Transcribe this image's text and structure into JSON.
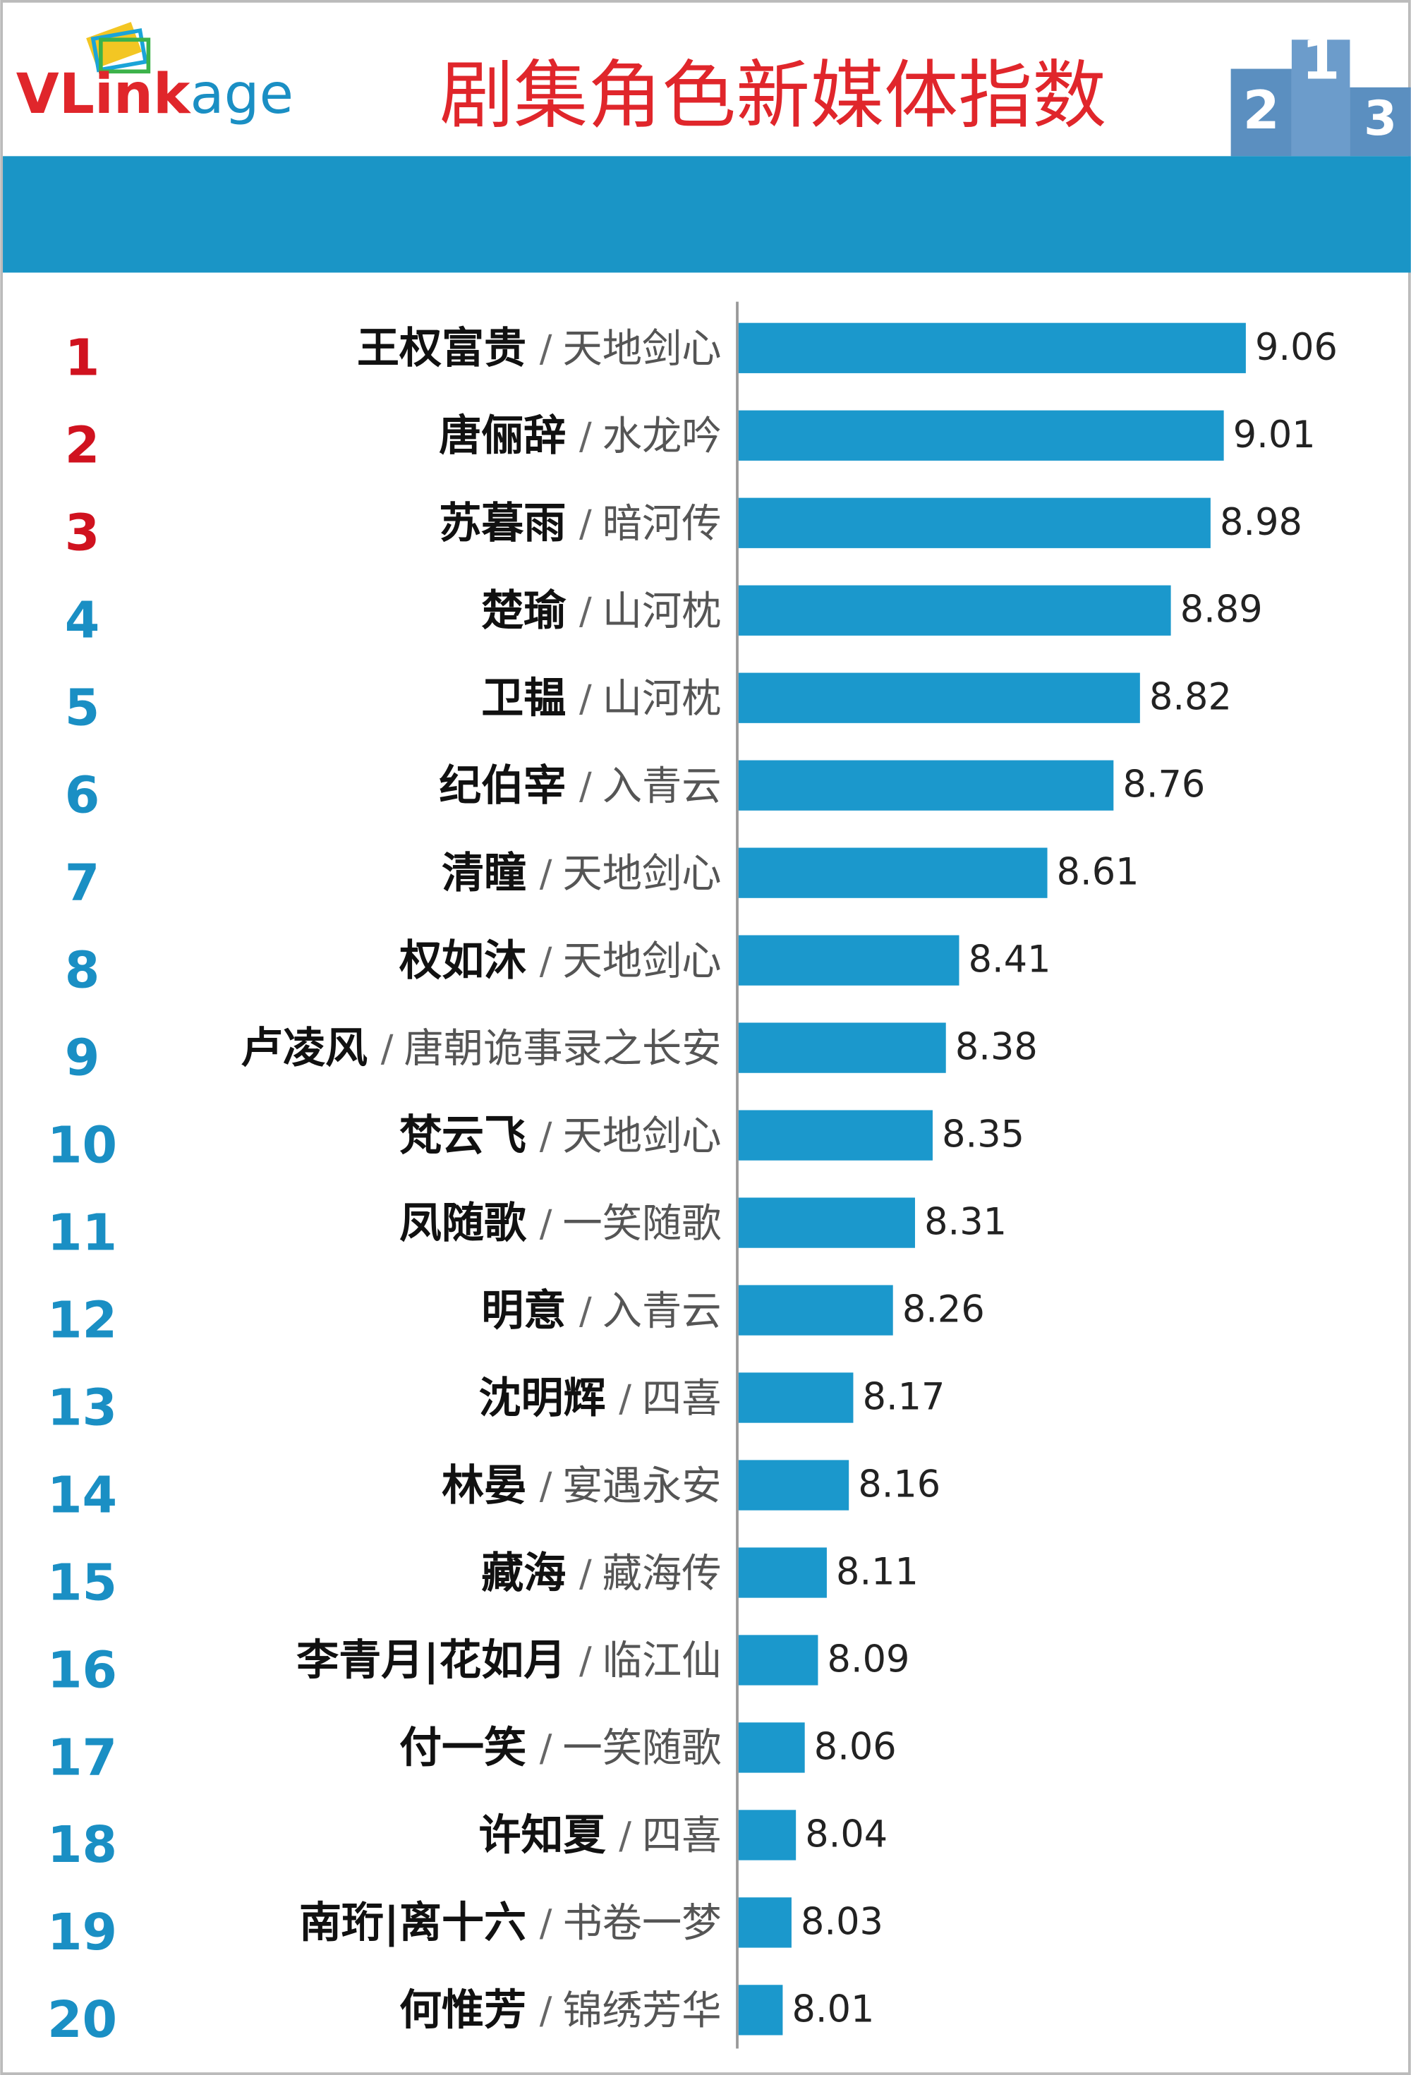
{
  "chart_data": {
    "type": "bar",
    "logo": [
      "VLink",
      "age"
    ],
    "title": "剧集角色新媒体指数",
    "podium_labels": [
      "2",
      "1",
      "3"
    ],
    "ranks": [
      1,
      2,
      3,
      4,
      5,
      6,
      7,
      8,
      9,
      10,
      11,
      12,
      13,
      14,
      15,
      16,
      17,
      18,
      19,
      20
    ],
    "categories": [
      "王权富贵",
      "唐俪辞",
      "苏暮雨",
      "楚瑜",
      "卫韫",
      "纪伯宰",
      "清瞳",
      "权如沐",
      "卢凌风",
      "梵云飞",
      "凤随歌",
      "明意",
      "沈明辉",
      "林晏",
      "藏海",
      "李青月|花如月",
      "付一笑",
      "许知夏",
      "南珩|离十六",
      "何惟芳"
    ],
    "separator": "/",
    "shows": [
      "天地剑心",
      "水龙吟",
      "暗河传",
      "山河枕",
      "山河枕",
      "入青云",
      "天地剑心",
      "天地剑心",
      "唐朝诡事录之长安",
      "天地剑心",
      "一笑随歌",
      "入青云",
      "四喜",
      "宴遇永安",
      "藏海传",
      "临江仙",
      "一笑随歌",
      "四喜",
      "书卷一梦",
      "锦绣芳华"
    ],
    "values": [
      9.06,
      9.01,
      8.98,
      8.89,
      8.82,
      8.76,
      8.61,
      8.41,
      8.38,
      8.35,
      8.31,
      8.26,
      8.17,
      8.16,
      8.11,
      8.09,
      8.06,
      8.04,
      8.03,
      8.01
    ],
    "xlim": [
      7.91,
      9.2
    ],
    "color": "#1b98cc",
    "top_rank_color": "#d0121f",
    "rank_color": "#1a8fc4",
    "top_ranks": 3
  }
}
